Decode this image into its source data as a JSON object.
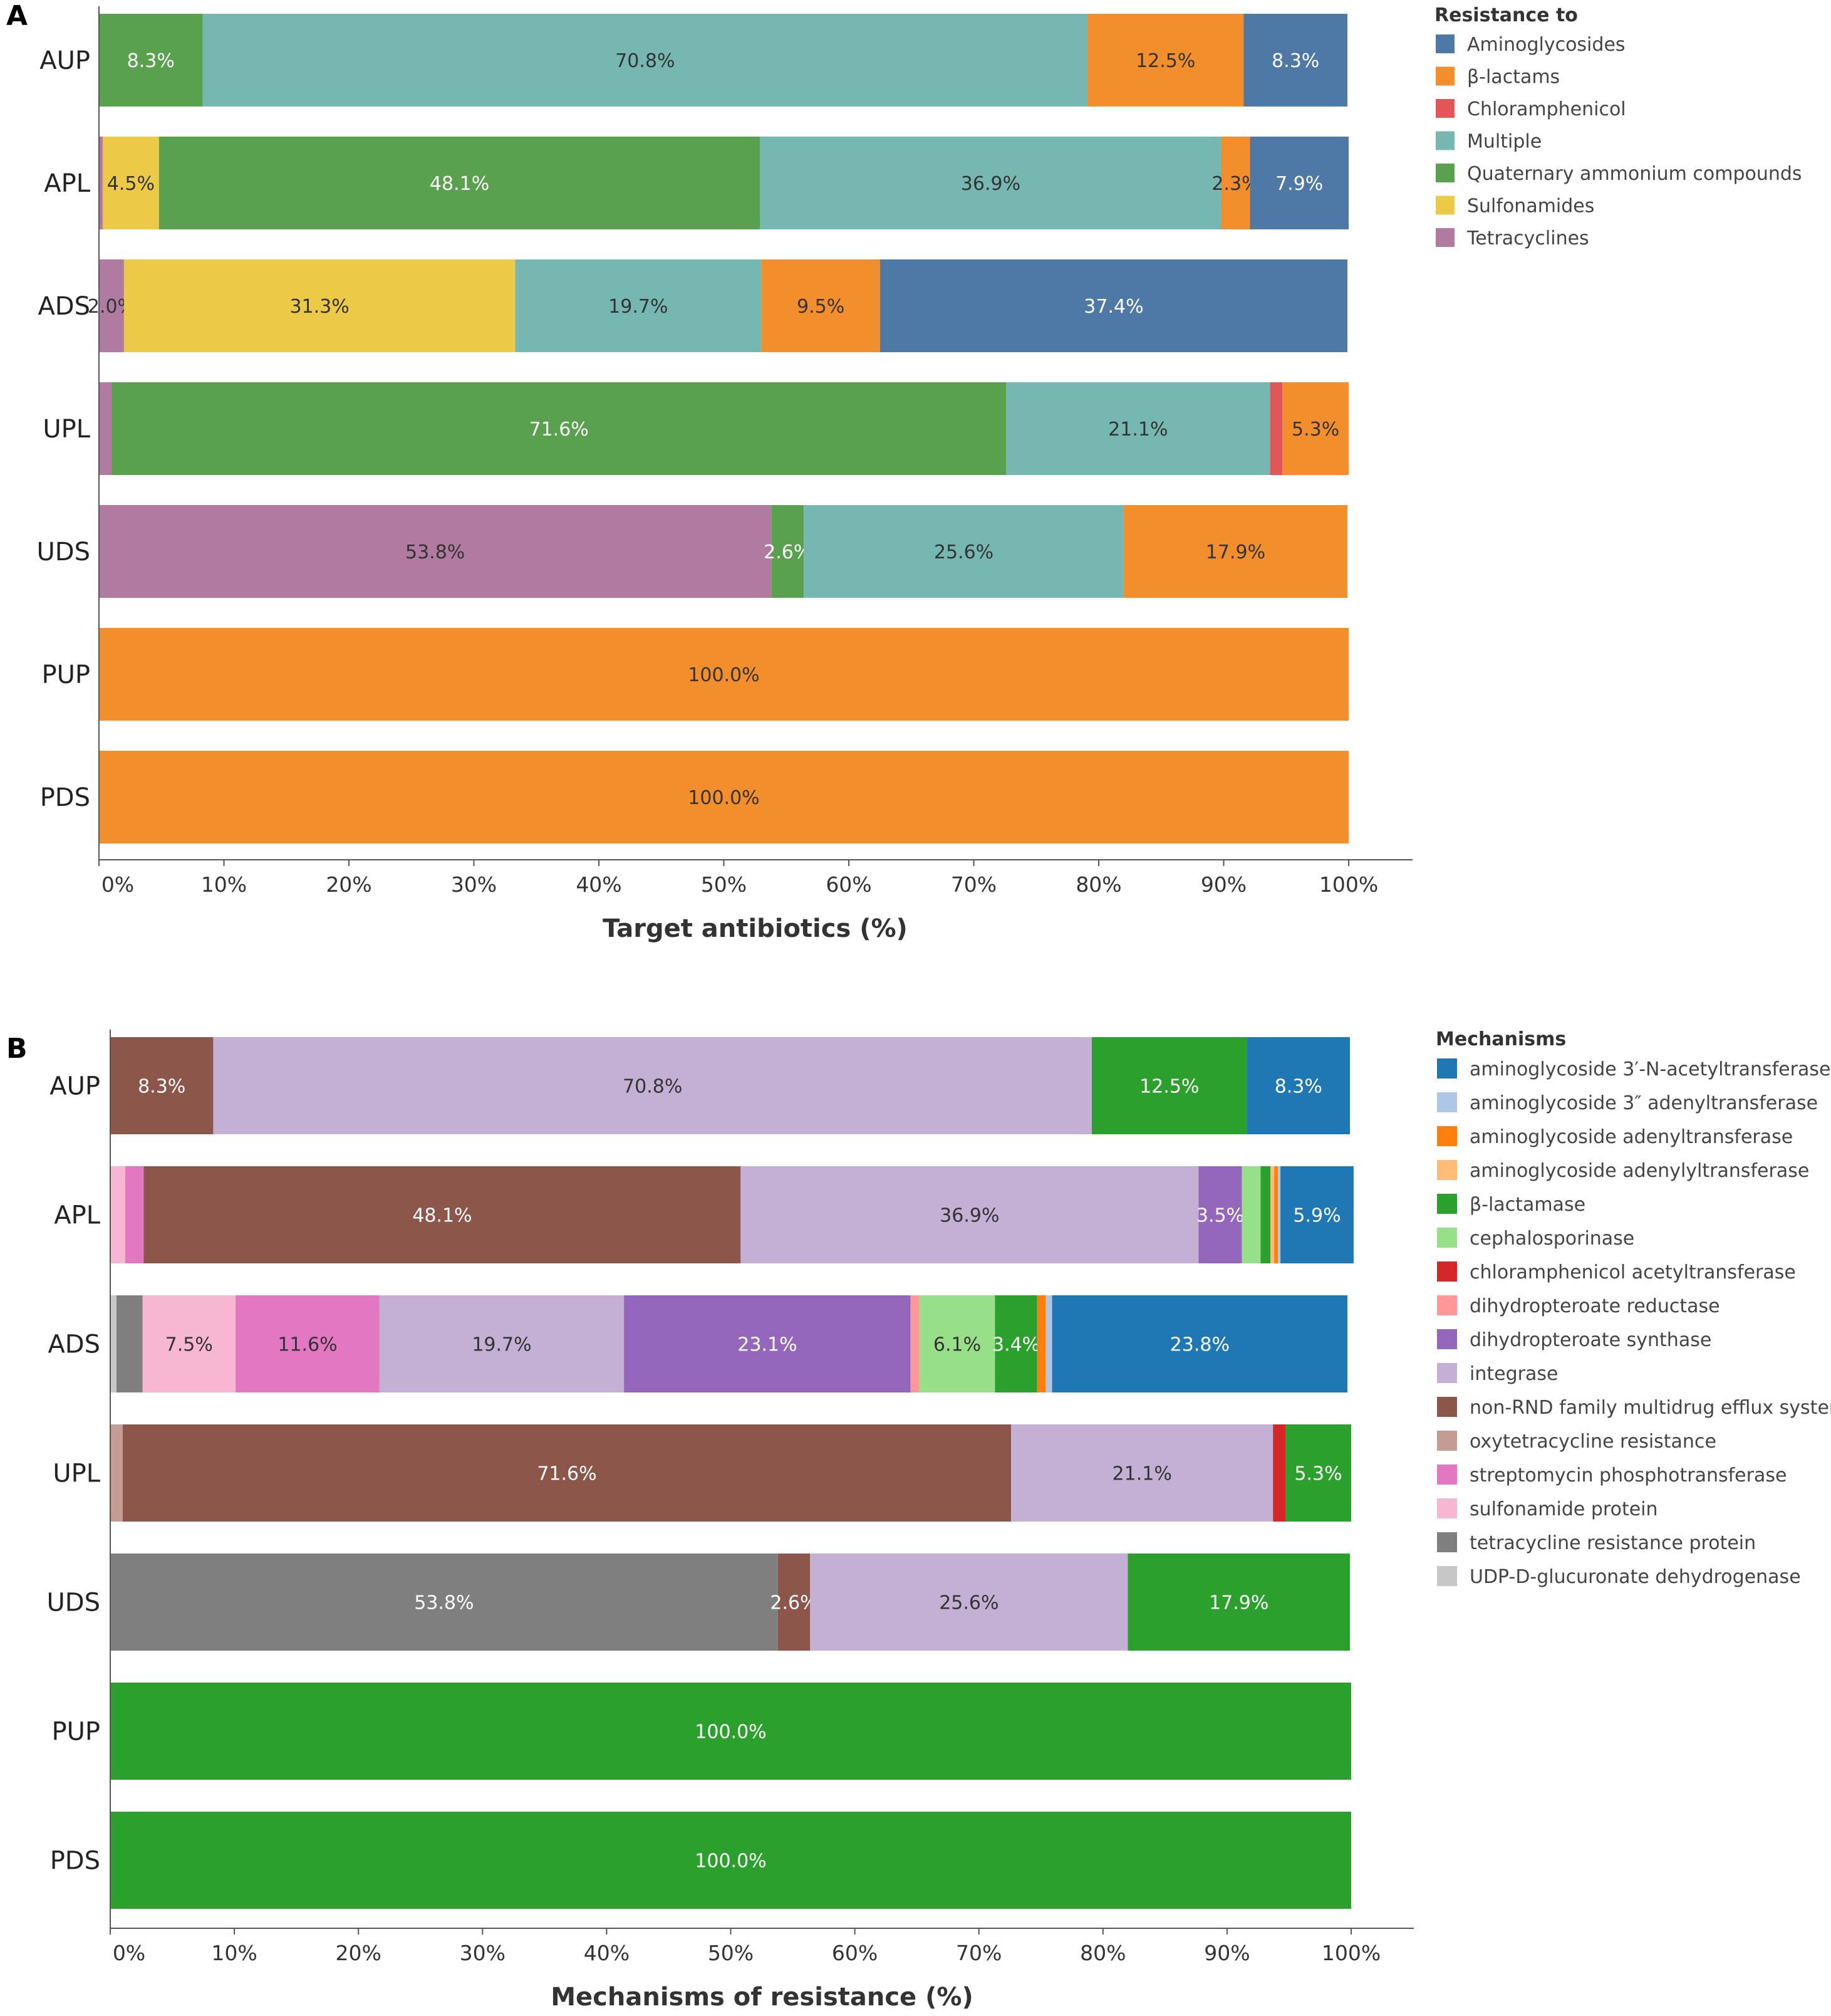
{
  "chart_data": [
    {
      "panel": "A",
      "type": "bar",
      "orientation": "horizontal",
      "stacked": "percent",
      "xlabel": "Target antibiotics (%)",
      "ylabel": "",
      "xlim": [
        0,
        100
      ],
      "xticks": [
        "0%",
        "10%",
        "20%",
        "30%",
        "40%",
        "50%",
        "60%",
        "70%",
        "80%",
        "90%",
        "100%"
      ],
      "categories": [
        "AUP",
        "APL",
        "ADS",
        "UPL",
        "UDS",
        "PUP",
        "PDS"
      ],
      "legend": {
        "title": "Resistance to",
        "placement": "right",
        "items": [
          {
            "name": "Aminoglycosides",
            "color": "#4e79a7"
          },
          {
            "name": "β-lactams",
            "color": "#f28e2b"
          },
          {
            "name": "Chloramphenicol",
            "color": "#e15759"
          },
          {
            "name": "Multiple",
            "color": "#76b7b2"
          },
          {
            "name": "Quaternary ammonium compounds",
            "color": "#59a14f"
          },
          {
            "name": "Sulfonamides",
            "color": "#edc948"
          },
          {
            "name": "Tetracyclines",
            "color": "#b07aa1"
          }
        ]
      },
      "bars": [
        {
          "category": "AUP",
          "segments": [
            {
              "series": "Quaternary ammonium compounds",
              "value": 8.3,
              "label": "8.3%"
            },
            {
              "series": "Multiple",
              "value": 70.8,
              "label": "70.8%"
            },
            {
              "series": "β-lactams",
              "value": 12.5,
              "label": "12.5%"
            },
            {
              "series": "Aminoglycosides",
              "value": 8.3,
              "label": "8.3%"
            }
          ]
        },
        {
          "category": "APL",
          "segments": [
            {
              "series": "Tetracyclines",
              "value": 0.3,
              "label": ""
            },
            {
              "series": "Sulfonamides",
              "value": 4.5,
              "label": "4.5%"
            },
            {
              "series": "Quaternary ammonium compounds",
              "value": 48.1,
              "label": "48.1%"
            },
            {
              "series": "Multiple",
              "value": 36.9,
              "label": "36.9%"
            },
            {
              "series": "β-lactams",
              "value": 2.3,
              "label": "2.3%"
            },
            {
              "series": "Aminoglycosides",
              "value": 7.9,
              "label": "7.9%"
            }
          ]
        },
        {
          "category": "ADS",
          "segments": [
            {
              "series": "Tetracyclines",
              "value": 2.0,
              "label": "2.0%"
            },
            {
              "series": "Sulfonamides",
              "value": 31.3,
              "label": "31.3%"
            },
            {
              "series": "Multiple",
              "value": 19.7,
              "label": "19.7%"
            },
            {
              "series": "β-lactams",
              "value": 9.5,
              "label": "9.5%"
            },
            {
              "series": "Aminoglycosides",
              "value": 37.4,
              "label": "37.4%"
            }
          ]
        },
        {
          "category": "UPL",
          "segments": [
            {
              "series": "Tetracyclines",
              "value": 1.0,
              "label": ""
            },
            {
              "series": "Quaternary ammonium compounds",
              "value": 71.6,
              "label": "71.6%"
            },
            {
              "series": "Multiple",
              "value": 21.1,
              "label": "21.1%"
            },
            {
              "series": "Chloramphenicol",
              "value": 1.0,
              "label": ""
            },
            {
              "series": "β-lactams",
              "value": 5.3,
              "label": "5.3%"
            }
          ]
        },
        {
          "category": "UDS",
          "segments": [
            {
              "series": "Tetracyclines",
              "value": 53.8,
              "label": "53.8%"
            },
            {
              "series": "Quaternary ammonium compounds",
              "value": 2.6,
              "label": "2.6%"
            },
            {
              "series": "Multiple",
              "value": 25.6,
              "label": "25.6%"
            },
            {
              "series": "β-lactams",
              "value": 17.9,
              "label": "17.9%"
            }
          ]
        },
        {
          "category": "PUP",
          "segments": [
            {
              "series": "β-lactams",
              "value": 100.0,
              "label": "100.0%"
            }
          ]
        },
        {
          "category": "PDS",
          "segments": [
            {
              "series": "β-lactams",
              "value": 100.0,
              "label": "100.0%"
            }
          ]
        }
      ]
    },
    {
      "panel": "B",
      "type": "bar",
      "orientation": "horizontal",
      "stacked": "percent",
      "xlabel": "Mechanisms of resistance (%)",
      "ylabel": "",
      "xlim": [
        0,
        100
      ],
      "xticks": [
        "0%",
        "10%",
        "20%",
        "30%",
        "40%",
        "50%",
        "60%",
        "70%",
        "80%",
        "90%",
        "100%"
      ],
      "categories": [
        "AUP",
        "APL",
        "ADS",
        "UPL",
        "UDS",
        "PUP",
        "PDS"
      ],
      "legend": {
        "title": "Mechanisms",
        "placement": "right",
        "items": [
          {
            "name": "aminoglycoside 3′-N-acetyltransferase",
            "color": "#1f77b4"
          },
          {
            "name": "aminoglycoside 3″ adenyltransferase",
            "color": "#aec7e8"
          },
          {
            "name": "aminoglycoside adenyltransferase",
            "color": "#ff7f0e"
          },
          {
            "name": "aminoglycoside adenylyltransferase",
            "color": "#ffbb78"
          },
          {
            "name": "β-lactamase",
            "color": "#2ca02c"
          },
          {
            "name": "cephalosporinase",
            "color": "#98df8a"
          },
          {
            "name": "chloramphenicol acetyltransferase",
            "color": "#d62728"
          },
          {
            "name": "dihydropteroate reductase",
            "color": "#ff9896"
          },
          {
            "name": "dihydropteroate synthase",
            "color": "#9467bd"
          },
          {
            "name": "integrase",
            "color": "#c5b0d5"
          },
          {
            "name": "non-RND family multidrug efflux system",
            "color": "#8c564b"
          },
          {
            "name": "oxytetracycline resistance",
            "color": "#c49c94"
          },
          {
            "name": "streptomycin phosphotransferase",
            "color": "#e377c2"
          },
          {
            "name": "sulfonamide protein",
            "color": "#f7b6d2"
          },
          {
            "name": "tetracycline resistance protein",
            "color": "#7f7f7f"
          },
          {
            "name": "UDP-D-glucuronate dehydrogenase",
            "color": "#c7c7c7"
          }
        ]
      },
      "bars": [
        {
          "category": "AUP",
          "segments": [
            {
              "series": "non-RND family multidrug efflux system",
              "value": 8.3,
              "label": "8.3%"
            },
            {
              "series": "integrase",
              "value": 70.8,
              "label": "70.8%"
            },
            {
              "series": "β-lactamase",
              "value": 12.5,
              "label": "12.5%"
            },
            {
              "series": "aminoglycoside 3′-N-acetyltransferase",
              "value": 8.3,
              "label": "8.3%"
            }
          ]
        },
        {
          "category": "APL",
          "segments": [
            {
              "series": "sulfonamide protein",
              "value": 1.2,
              "label": ""
            },
            {
              "series": "streptomycin phosphotransferase",
              "value": 1.5,
              "label": ""
            },
            {
              "series": "non-RND family multidrug efflux system",
              "value": 48.1,
              "label": "48.1%"
            },
            {
              "series": "integrase",
              "value": 36.9,
              "label": "36.9%"
            },
            {
              "series": "dihydropteroate synthase",
              "value": 3.5,
              "label": "3.5%"
            },
            {
              "series": "cephalosporinase",
              "value": 1.5,
              "label": ""
            },
            {
              "series": "β-lactamase",
              "value": 0.8,
              "label": ""
            },
            {
              "series": "aminoglycoside adenylyltransferase",
              "value": 0.3,
              "label": ""
            },
            {
              "series": "aminoglycoside adenyltransferase",
              "value": 0.3,
              "label": ""
            },
            {
              "series": "aminoglycoside 3″ adenyltransferase",
              "value": 0.2,
              "label": ""
            },
            {
              "series": "aminoglycoside 3′-N-acetyltransferase",
              "value": 5.9,
              "label": "5.9%"
            }
          ]
        },
        {
          "category": "ADS",
          "segments": [
            {
              "series": "UDP-D-glucuronate dehydrogenase",
              "value": 0.5,
              "label": ""
            },
            {
              "series": "tetracycline resistance protein",
              "value": 2.1,
              "label": ""
            },
            {
              "series": "sulfonamide protein",
              "value": 7.5,
              "label": "7.5%"
            },
            {
              "series": "streptomycin phosphotransferase",
              "value": 11.6,
              "label": "11.6%"
            },
            {
              "series": "integrase",
              "value": 19.7,
              "label": "19.7%"
            },
            {
              "series": "dihydropteroate synthase",
              "value": 23.1,
              "label": "23.1%"
            },
            {
              "series": "dihydropteroate reductase",
              "value": 0.7,
              "label": ""
            },
            {
              "series": "cephalosporinase",
              "value": 6.1,
              "label": "6.1%"
            },
            {
              "series": "β-lactamase",
              "value": 3.4,
              "label": "3.4%"
            },
            {
              "series": "aminoglycoside adenyltransferase",
              "value": 0.7,
              "label": ""
            },
            {
              "series": "aminoglycoside 3″ adenyltransferase",
              "value": 0.5,
              "label": ""
            },
            {
              "series": "aminoglycoside 3′-N-acetyltransferase",
              "value": 23.8,
              "label": "23.8%"
            }
          ]
        },
        {
          "category": "UPL",
          "segments": [
            {
              "series": "oxytetracycline resistance",
              "value": 1.0,
              "label": ""
            },
            {
              "series": "non-RND family multidrug efflux system",
              "value": 71.6,
              "label": "71.6%"
            },
            {
              "series": "integrase",
              "value": 21.1,
              "label": "21.1%"
            },
            {
              "series": "chloramphenicol acetyltransferase",
              "value": 1.0,
              "label": ""
            },
            {
              "series": "β-lactamase",
              "value": 5.3,
              "label": "5.3%"
            }
          ]
        },
        {
          "category": "UDS",
          "segments": [
            {
              "series": "tetracycline resistance protein",
              "value": 53.8,
              "label": "53.8%"
            },
            {
              "series": "non-RND family multidrug efflux system",
              "value": 2.6,
              "label": "2.6%"
            },
            {
              "series": "integrase",
              "value": 25.6,
              "label": "25.6%"
            },
            {
              "series": "β-lactamase",
              "value": 17.9,
              "label": "17.9%"
            }
          ]
        },
        {
          "category": "PUP",
          "segments": [
            {
              "series": "β-lactamase",
              "value": 100.0,
              "label": "100.0%"
            }
          ]
        },
        {
          "category": "PDS",
          "segments": [
            {
              "series": "β-lactamase",
              "value": 100.0,
              "label": "100.0%"
            }
          ]
        }
      ]
    }
  ]
}
